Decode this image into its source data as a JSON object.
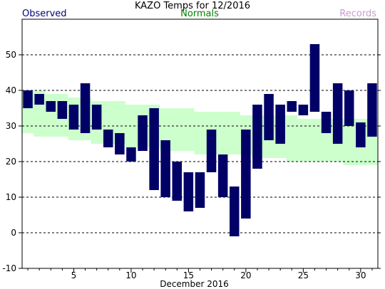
{
  "chart_data": {
    "type": "bar",
    "title": "KAZO Temps for 12/2016",
    "xlabel": "December 2016",
    "ylabel": "",
    "xlim": [
      0.5,
      31.5
    ],
    "ylim": [
      -10,
      60
    ],
    "yticks": [
      -10,
      0,
      10,
      20,
      30,
      40,
      50
    ],
    "xticks": [
      5,
      10,
      15,
      20,
      25,
      30
    ],
    "grid": true,
    "legend": [
      "Observed",
      "Normals",
      "Records"
    ],
    "colors": {
      "observed": "#000066",
      "normals": "#ccffcc",
      "records": "#cc99cc"
    },
    "normals": {
      "x": [
        1,
        2,
        3,
        4,
        5,
        6,
        7,
        8,
        9,
        10,
        11,
        12,
        13,
        14,
        15,
        16,
        17,
        18,
        19,
        20,
        21,
        22,
        23,
        24,
        25,
        26,
        27,
        28,
        29,
        30,
        31
      ],
      "high": [
        40,
        40,
        39,
        39,
        38,
        38,
        37,
        37,
        37,
        36,
        36,
        36,
        35,
        35,
        35,
        34,
        34,
        34,
        34,
        33,
        33,
        33,
        33,
        33,
        32,
        32,
        32,
        32,
        32,
        32,
        32
      ],
      "low": [
        28,
        27,
        27,
        27,
        26,
        26,
        25,
        25,
        25,
        24,
        24,
        24,
        23,
        23,
        23,
        22,
        22,
        22,
        22,
        22,
        21,
        21,
        21,
        20,
        20,
        20,
        20,
        20,
        19,
        19,
        19
      ]
    },
    "observed": {
      "x": [
        1,
        2,
        3,
        4,
        5,
        6,
        7,
        8,
        9,
        10,
        11,
        12,
        13,
        14,
        15,
        16,
        17,
        18,
        19,
        20,
        21,
        22,
        23,
        24,
        25,
        26,
        27,
        28,
        29,
        30,
        31
      ],
      "high": [
        40,
        39,
        37,
        37,
        36,
        42,
        36,
        29,
        28,
        24,
        33,
        35,
        26,
        20,
        17,
        17,
        29,
        22,
        13,
        29,
        36,
        39,
        36,
        37,
        36,
        53,
        34,
        42,
        40,
        31,
        42
      ],
      "low": [
        35,
        36,
        34,
        32,
        29,
        28,
        29,
        24,
        22,
        20,
        23,
        12,
        10,
        9,
        6,
        7,
        17,
        10,
        -1,
        4,
        18,
        26,
        25,
        34,
        33,
        34,
        28,
        25,
        30,
        24,
        27
      ]
    }
  }
}
